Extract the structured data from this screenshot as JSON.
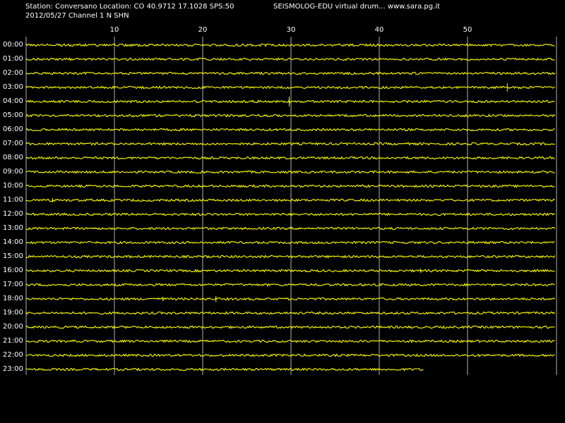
{
  "header": {
    "station_line": "Station: Conversano Location: CO 40.9712 17.1028 SPS:50",
    "brand_line": "SEISMOLOG-EDU virtual drum... www.sara.pg.it",
    "date_line": "2012/05/27  Channel 1 N SHN"
  },
  "minute_ticks": [
    "10",
    "20",
    "30",
    "40",
    "50"
  ],
  "hours": [
    "00:00",
    "01:00",
    "02:00",
    "03:00",
    "04:00",
    "05:00",
    "06:00",
    "07:00",
    "08:00",
    "09:00",
    "10:00",
    "11:00",
    "12:00",
    "13:00",
    "14:00",
    "15:00",
    "16:00",
    "17:00",
    "18:00",
    "19:00",
    "20:00",
    "21:00",
    "22:00",
    "23:00"
  ],
  "last_row_minutes": 45,
  "colors": {
    "background": "#000000",
    "trace": "#ffff00",
    "text": "#ffffff",
    "grid": "#b0b0b0"
  }
}
